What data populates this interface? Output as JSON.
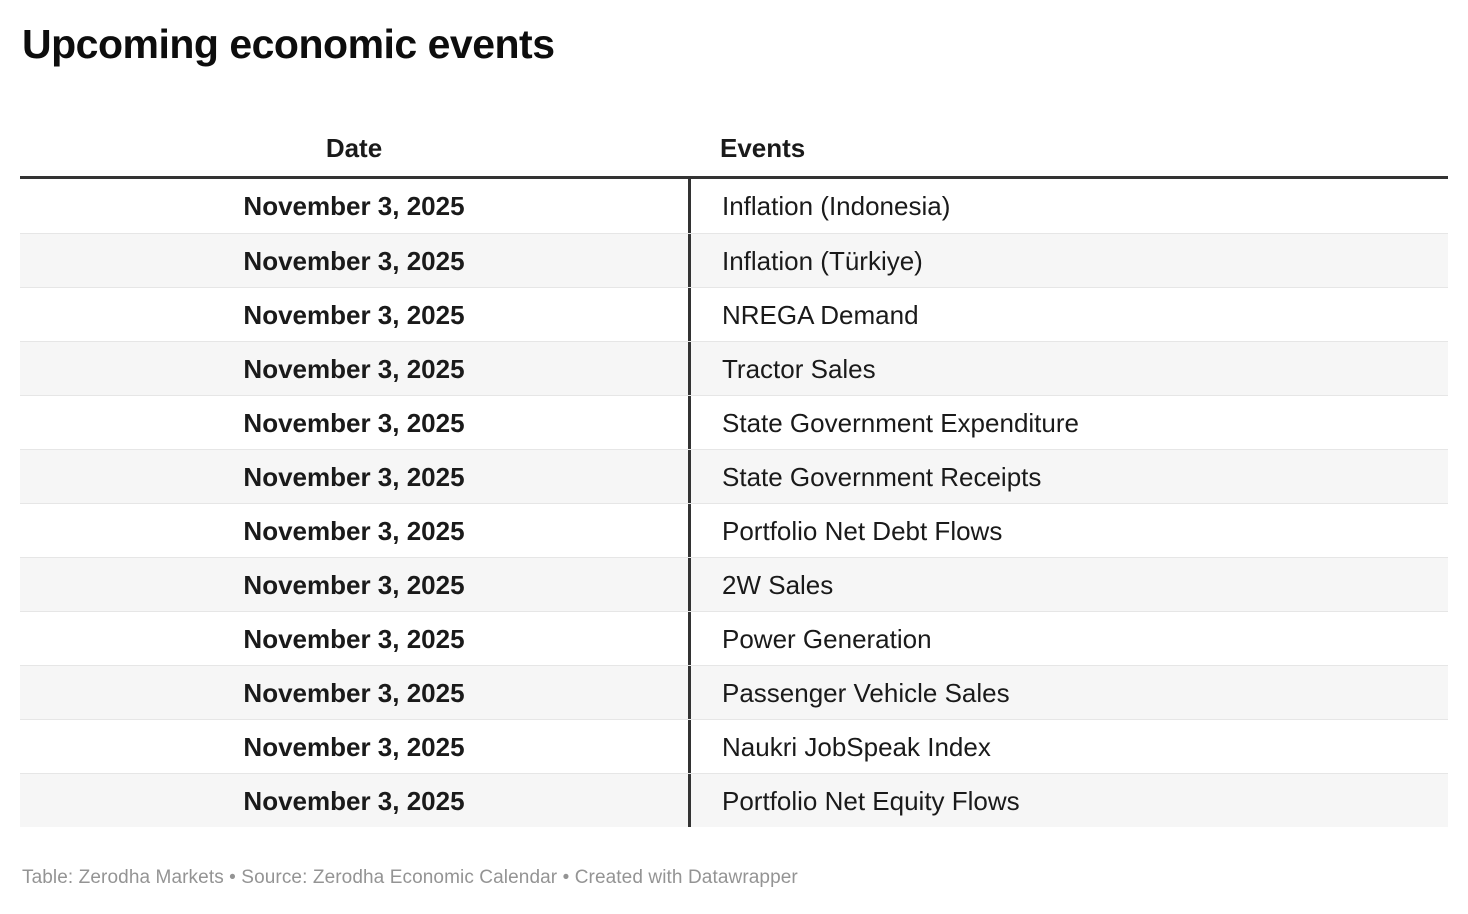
{
  "chart_data": {
    "type": "table",
    "title": "Upcoming economic events",
    "columns": [
      "Date",
      "Events"
    ],
    "rows": [
      [
        "November 3, 2025",
        "Inflation (Indonesia)"
      ],
      [
        "November 3, 2025",
        "Inflation (Türkiye)"
      ],
      [
        "November 3, 2025",
        "NREGA Demand"
      ],
      [
        "November 3, 2025",
        "Tractor Sales"
      ],
      [
        "November 3, 2025",
        "State Government Expenditure"
      ],
      [
        "November 3, 2025",
        "State Government Receipts"
      ],
      [
        "November 3, 2025",
        "Portfolio Net Debt Flows"
      ],
      [
        "November 3, 2025",
        "2W Sales"
      ],
      [
        "November 3, 2025",
        "Power Generation"
      ],
      [
        "November 3, 2025",
        "Passenger Vehicle Sales"
      ],
      [
        "November 3, 2025",
        "Naukri JobSpeak Index"
      ],
      [
        "November 3, 2025",
        "Portfolio Net Equity Flows"
      ]
    ],
    "footer": "Table: Zerodha Markets • Source: Zerodha Economic Calendar • Created with Datawrapper",
    "layout": {
      "stripes": true,
      "legend_position": "none",
      "grid": "row-separators"
    },
    "colors": {
      "header_rule": "#333333",
      "column_divider": "#333333",
      "row_separator": "#e6e6e6",
      "stripe_bg": "#f6f6f6",
      "text": "#1a1a1a",
      "footer_text": "#949494"
    }
  }
}
